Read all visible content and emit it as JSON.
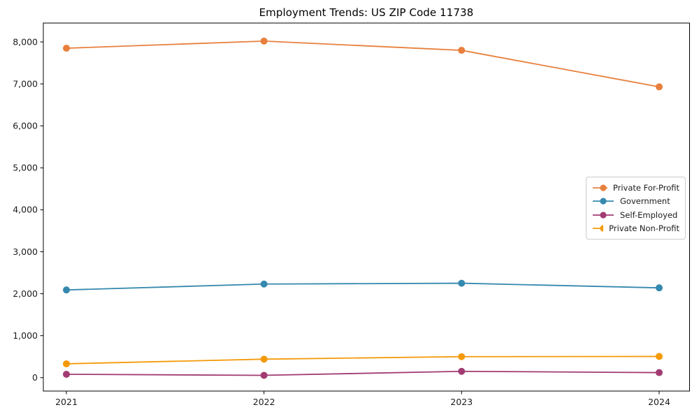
{
  "chart_data": {
    "type": "line",
    "title": "Employment Trends: US ZIP Code 11738",
    "xlabel": "",
    "ylabel": "",
    "x": [
      "2021",
      "2022",
      "2023",
      "2024"
    ],
    "yticks": [
      0,
      1000,
      2000,
      3000,
      4000,
      5000,
      6000,
      7000,
      8000
    ],
    "ytick_labels": [
      "0",
      "1,000",
      "2,000",
      "3,000",
      "4,000",
      "5,000",
      "6,000",
      "7,000",
      "8,000"
    ],
    "ylim": [
      -320,
      8450
    ],
    "grid": false,
    "legend": {
      "position": "center-right",
      "border_color": "#cccccc"
    },
    "series": [
      {
        "name": "Private For-Profit",
        "color": "#E8803D",
        "values": [
          7850,
          8020,
          7800,
          6930
        ]
      },
      {
        "name": "Government",
        "color": "#3589AE",
        "values": [
          2090,
          2230,
          2250,
          2140
        ]
      },
      {
        "name": "Self-Employed",
        "color": "#A23B72",
        "values": [
          80,
          55,
          150,
          120
        ]
      },
      {
        "name": "Private Non-Profit",
        "color": "#F49A0A",
        "values": [
          330,
          440,
          500,
          505
        ]
      }
    ]
  }
}
